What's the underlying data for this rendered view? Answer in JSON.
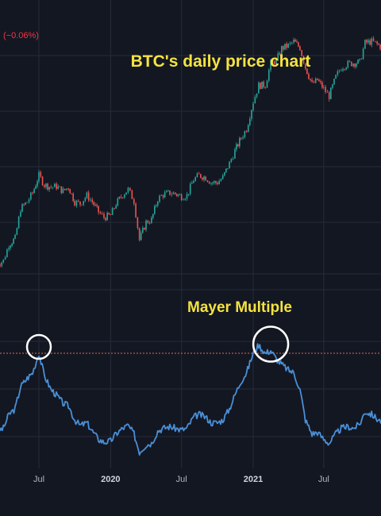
{
  "header": {
    "change_text": "(−0.06%)",
    "change_color": "#f23645"
  },
  "colors": {
    "background": "#131722",
    "grid": "#262b38",
    "up_candle": "#26a69a",
    "down_candle": "#ef5350",
    "annotation": "#f5e340",
    "mayer_line": "#4a8fd6",
    "threshold_line": "#e06b55",
    "highlight_circle": "#ffffff"
  },
  "chart_data": [
    {
      "type": "line",
      "title": "BTC's daily price chart",
      "style": "candlestick",
      "x_scale": "date",
      "x": [
        "2019-03-15",
        "2019-04-01",
        "2019-04-15",
        "2019-05-01",
        "2019-05-15",
        "2019-06-01",
        "2019-06-15",
        "2019-07-01",
        "2019-07-15",
        "2019-08-01",
        "2019-08-15",
        "2019-09-01",
        "2019-09-15",
        "2019-10-01",
        "2019-10-15",
        "2019-11-01",
        "2019-11-15",
        "2019-12-01",
        "2019-12-15",
        "2020-01-01",
        "2020-01-15",
        "2020-02-01",
        "2020-02-15",
        "2020-03-01",
        "2020-03-15",
        "2020-04-01",
        "2020-04-15",
        "2020-05-01",
        "2020-05-15",
        "2020-06-01",
        "2020-06-15",
        "2020-07-01",
        "2020-07-15",
        "2020-08-01",
        "2020-08-15",
        "2020-09-01",
        "2020-09-15",
        "2020-10-01",
        "2020-10-15",
        "2020-11-01",
        "2020-11-15",
        "2020-12-01",
        "2020-12-15",
        "2021-01-01",
        "2021-01-15",
        "2021-02-01",
        "2021-02-15",
        "2021-03-01",
        "2021-03-15",
        "2021-04-01",
        "2021-04-15",
        "2021-05-01",
        "2021-05-15",
        "2021-06-01",
        "2021-06-15",
        "2021-07-01",
        "2021-07-15",
        "2021-08-01",
        "2021-08-15",
        "2021-09-01",
        "2021-09-15",
        "2021-10-01",
        "2021-10-15",
        "2021-11-01",
        "2021-11-15",
        "2021-12-01"
      ],
      "values": [
        3900,
        4100,
        5000,
        5400,
        7800,
        8500,
        9500,
        11800,
        10500,
        10200,
        10300,
        9700,
        10200,
        8500,
        8300,
        9200,
        8500,
        7500,
        7000,
        7200,
        8300,
        9300,
        9900,
        8600,
        5300,
        6600,
        6800,
        8800,
        9300,
        9500,
        9400,
        9100,
        9200,
        11200,
        11800,
        11500,
        10800,
        10800,
        11500,
        13700,
        16000,
        18800,
        21000,
        29500,
        36000,
        36200,
        47500,
        49000,
        57000,
        59000,
        62000,
        57500,
        45000,
        36500,
        38500,
        34500,
        31500,
        40000,
        45000,
        47000,
        47500,
        48000,
        61000,
        62000,
        60000,
        57000
      ],
      "series": [
        {
          "values": [
            3900,
            4100,
            5000,
            5400,
            7800,
            8500,
            9500,
            11800,
            10500,
            10200,
            10300,
            9700,
            10200,
            8500,
            8300,
            9200,
            8500,
            7500,
            7000,
            7200,
            8300,
            9300,
            9900,
            8600,
            5300,
            6600,
            6800,
            8800,
            9300,
            9500,
            9400,
            9100,
            9200,
            11200,
            11800,
            11500,
            10800,
            10800,
            11500,
            13700,
            16000,
            18800,
            21000,
            29500,
            36000,
            36200,
            47500,
            49000,
            57000,
            59000,
            62000,
            57500,
            45000,
            36500,
            38500,
            34500,
            31500,
            40000,
            45000,
            47000,
            47500,
            48000,
            61000,
            62000,
            60000,
            57000
          ]
        }
      ],
      "grid": true
    },
    {
      "type": "line",
      "title": "Mayer Multiple",
      "x_scale": "date",
      "x": [
        "2019-03-15",
        "2019-04-01",
        "2019-04-15",
        "2019-05-01",
        "2019-05-15",
        "2019-06-01",
        "2019-06-15",
        "2019-07-01",
        "2019-07-15",
        "2019-08-01",
        "2019-08-15",
        "2019-09-01",
        "2019-09-15",
        "2019-10-01",
        "2019-10-15",
        "2019-11-01",
        "2019-11-15",
        "2019-12-01",
        "2019-12-15",
        "2020-01-01",
        "2020-01-15",
        "2020-02-01",
        "2020-02-15",
        "2020-03-01",
        "2020-03-15",
        "2020-04-01",
        "2020-04-15",
        "2020-05-01",
        "2020-05-15",
        "2020-06-01",
        "2020-06-15",
        "2020-07-01",
        "2020-07-15",
        "2020-08-01",
        "2020-08-15",
        "2020-09-01",
        "2020-09-15",
        "2020-10-01",
        "2020-10-15",
        "2020-11-01",
        "2020-11-15",
        "2020-12-01",
        "2020-12-15",
        "2021-01-01",
        "2021-01-15",
        "2021-02-01",
        "2021-02-15",
        "2021-03-01",
        "2021-03-15",
        "2021-04-01",
        "2021-04-15",
        "2021-05-01",
        "2021-05-15",
        "2021-06-01",
        "2021-06-15",
        "2021-07-01",
        "2021-07-15",
        "2021-08-01",
        "2021-08-15",
        "2021-09-01",
        "2021-09-15",
        "2021-10-01",
        "2021-10-15",
        "2021-11-01",
        "2021-11-15",
        "2021-12-01"
      ],
      "values": [
        1.0,
        1.05,
        1.3,
        1.4,
        1.8,
        1.95,
        2.05,
        2.4,
        2.0,
        1.75,
        1.65,
        1.5,
        1.45,
        1.2,
        1.1,
        1.15,
        1.0,
        0.85,
        0.8,
        0.82,
        0.95,
        1.05,
        1.1,
        0.95,
        0.62,
        0.75,
        0.78,
        1.0,
        1.05,
        1.08,
        1.05,
        1.02,
        1.05,
        1.25,
        1.3,
        1.25,
        1.15,
        1.15,
        1.2,
        1.4,
        1.65,
        1.9,
        2.05,
        2.4,
        2.55,
        2.4,
        2.45,
        2.3,
        2.2,
        2.1,
        2.05,
        1.75,
        1.2,
        0.95,
        0.98,
        0.85,
        0.78,
        0.95,
        1.05,
        1.08,
        1.05,
        1.12,
        1.35,
        1.3,
        1.22,
        1.15
      ],
      "series": [
        {
          "values": [
            1.0,
            1.05,
            1.3,
            1.4,
            1.8,
            1.95,
            2.05,
            2.4,
            2.0,
            1.75,
            1.65,
            1.5,
            1.45,
            1.2,
            1.1,
            1.15,
            1.0,
            0.85,
            0.8,
            0.82,
            0.95,
            1.05,
            1.1,
            0.95,
            0.62,
            0.75,
            0.78,
            1.0,
            1.05,
            1.08,
            1.05,
            1.02,
            1.05,
            1.25,
            1.3,
            1.25,
            1.15,
            1.15,
            1.2,
            1.4,
            1.65,
            1.9,
            2.05,
            2.4,
            2.55,
            2.4,
            2.45,
            2.3,
            2.2,
            2.1,
            2.05,
            1.75,
            1.2,
            0.95,
            0.98,
            0.85,
            0.78,
            0.95,
            1.05,
            1.08,
            1.05,
            1.12,
            1.35,
            1.3,
            1.22,
            1.15
          ]
        }
      ],
      "threshold": 2.4,
      "highlighted_peaks": [
        "2019-07-01",
        "2021-02-15"
      ],
      "x_tick_labels": [
        "Jul",
        "2020",
        "Jul",
        "2021",
        "Jul"
      ],
      "x_tick_dates": [
        "2019-07-01",
        "2020-01-01",
        "2020-07-01",
        "2021-01-01",
        "2021-07-01"
      ],
      "bold_ticks": [
        "2020",
        "2021"
      ],
      "grid": true
    }
  ]
}
